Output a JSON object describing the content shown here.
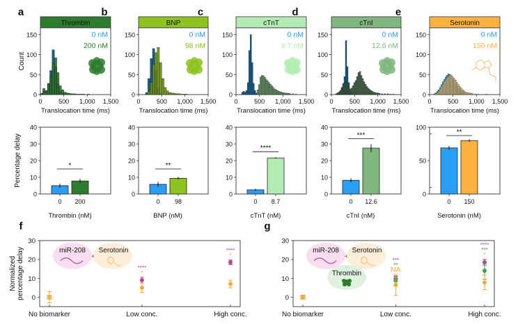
{
  "chart_data": [
    {
      "panel": "a",
      "type": "bar",
      "subtype": "histogram",
      "title": "Thrombin",
      "header_color": "#2e7d2e",
      "xlabel": "Translocation time (ms)",
      "ylabel": "Count",
      "xlim": [
        0,
        1500
      ],
      "ylim": [
        0,
        160
      ],
      "xticks": [
        "0",
        "500",
        "1,000",
        "1,500"
      ],
      "yticks": [
        "0",
        "50",
        "100",
        "150"
      ],
      "legend": [
        {
          "label": "0 nM",
          "color": "#2a9df4"
        },
        {
          "label": "200 nM",
          "color": "#2e7d2e"
        }
      ],
      "legend_placement": "top-right",
      "icon": "protein-structure",
      "bin_width": 50,
      "series": [
        {
          "name": "0 nM",
          "color": "#1a5f8c",
          "x": [
            0,
            50,
            100,
            150,
            200,
            250,
            300,
            350,
            400,
            450,
            500,
            550,
            600
          ],
          "values": [
            2,
            8,
            10,
            28,
            60,
            112,
            70,
            28,
            8,
            3,
            2,
            1,
            0
          ]
        },
        {
          "name": "200 nM",
          "color": "#2e6b2a",
          "x": [
            0,
            50,
            100,
            150,
            200,
            250,
            300,
            350,
            400,
            450,
            500,
            550,
            600,
            650,
            700,
            750,
            800,
            850,
            900,
            950,
            1000
          ],
          "values": [
            3,
            15,
            10,
            25,
            45,
            78,
            92,
            55,
            22,
            12,
            6,
            4,
            3,
            2,
            2,
            1,
            1,
            1,
            1,
            0,
            1
          ]
        }
      ]
    },
    {
      "panel": "b",
      "type": "bar",
      "subtype": "histogram",
      "title": "BNP",
      "header_color": "#8dc21f",
      "xlabel": "Translocation time (ms)",
      "ylabel": "",
      "xlim": [
        0,
        1500
      ],
      "ylim": [
        0,
        160
      ],
      "xticks": [
        "0",
        "500",
        "1,000",
        "1,500"
      ],
      "yticks": [
        "0",
        "50",
        "100",
        "150"
      ],
      "legend": [
        {
          "label": "0 nM",
          "color": "#2a9df4"
        },
        {
          "label": "98 nM",
          "color": "#8dc21f"
        }
      ],
      "legend_placement": "top-right",
      "icon": "protein-structure",
      "bin_width": 50,
      "series": [
        {
          "name": "0 nM",
          "color": "#1a5f8c",
          "x": [
            150,
            200,
            250,
            300,
            350,
            400,
            450
          ],
          "values": [
            5,
            40,
            90,
            115,
            60,
            15,
            3
          ]
        },
        {
          "name": "98 nM",
          "color": "#6b8e14",
          "x": [
            200,
            250,
            300,
            350,
            400,
            450,
            500,
            550,
            600,
            650,
            700,
            750,
            800,
            850,
            900,
            950,
            1000
          ],
          "values": [
            8,
            30,
            75,
            105,
            118,
            80,
            40,
            18,
            9,
            5,
            4,
            3,
            2,
            2,
            1,
            1,
            1
          ]
        }
      ]
    },
    {
      "panel": "c",
      "type": "bar",
      "subtype": "histogram",
      "title": "cTnT",
      "header_color": "#b2ecb2",
      "xlabel": "Translocation time (ms)",
      "ylabel": "",
      "xlim": [
        0,
        1500
      ],
      "ylim": [
        0,
        160
      ],
      "xticks": [
        "0",
        "500",
        "1,000",
        "1,500"
      ],
      "yticks": [
        "0",
        "50",
        "100",
        "150"
      ],
      "legend": [
        {
          "label": "0 nM",
          "color": "#2a9df4"
        },
        {
          "label": "8.7 nM",
          "color": "#b2ecb2"
        }
      ],
      "legend_placement": "top-right",
      "icon": "protein-structure",
      "bin_width": 30,
      "series": [
        {
          "name": "0 nM",
          "color": "#1a5f8c",
          "x": [
            120,
            150,
            180,
            210,
            240,
            270,
            300,
            330,
            360,
            390,
            420
          ],
          "values": [
            6,
            8,
            6,
            10,
            30,
            110,
            150,
            80,
            28,
            10,
            4
          ]
        },
        {
          "name": "8.7 nM",
          "color": "#5a8a5a",
          "x": [
            450,
            480,
            510,
            540,
            570,
            600,
            630,
            660,
            690,
            720,
            750,
            780,
            810,
            840,
            870,
            900,
            930,
            960,
            990,
            1020,
            1050,
            1080,
            1110,
            1140,
            1200,
            1260
          ],
          "values": [
            12,
            25,
            44,
            48,
            47,
            43,
            38,
            34,
            30,
            26,
            22,
            18,
            14,
            12,
            10,
            8,
            7,
            6,
            5,
            4,
            4,
            3,
            3,
            2,
            2,
            1
          ]
        }
      ]
    },
    {
      "panel": "d",
      "type": "bar",
      "subtype": "histogram",
      "title": "cTnI",
      "header_color": "#7fb77e",
      "xlabel": "Translocation time (ms)",
      "ylabel": "",
      "xlim": [
        0,
        1500
      ],
      "ylim": [
        0,
        160
      ],
      "xticks": [
        "0",
        "500",
        "1,000",
        "1,500"
      ],
      "yticks": [
        "0",
        "50",
        "100",
        "150"
      ],
      "legend": [
        {
          "label": "0 nM",
          "color": "#2a9df4"
        },
        {
          "label": "12.6 nM",
          "color": "#7fb77e"
        }
      ],
      "legend_placement": "top-right",
      "icon": "protein-structure",
      "bin_width": 30,
      "series": [
        {
          "name": "0 nM",
          "color": "#1a5f8c",
          "x": [
            90,
            120,
            150,
            180,
            210,
            240,
            270,
            300,
            330,
            360,
            390,
            420
          ],
          "values": [
            2,
            4,
            6,
            10,
            18,
            28,
            45,
            135,
            70,
            30,
            10,
            4
          ]
        },
        {
          "name": "12.6 nM",
          "color": "#3f5f3f",
          "x": [
            120,
            150,
            180,
            210,
            240,
            270,
            300,
            330,
            360,
            390,
            420,
            450,
            480,
            510,
            540,
            570,
            600,
            630,
            660,
            690,
            720,
            750,
            780,
            810,
            840,
            870,
            900,
            930,
            960,
            990,
            1020,
            1080,
            1140,
            1200,
            1260,
            1320
          ],
          "values": [
            3,
            6,
            10,
            15,
            20,
            28,
            32,
            28,
            18,
            14,
            16,
            22,
            30,
            35,
            45,
            55,
            58,
            48,
            40,
            32,
            26,
            20,
            16,
            13,
            10,
            8,
            6,
            5,
            4,
            4,
            3,
            2,
            2,
            2,
            1,
            1
          ]
        }
      ]
    },
    {
      "panel": "e",
      "type": "bar",
      "subtype": "histogram",
      "title": "Serotonin",
      "header_color": "#ffb23f",
      "xlabel": "Translocation time (ms)",
      "ylabel": "",
      "xlim": [
        0,
        1500
      ],
      "ylim": [
        0,
        160
      ],
      "xticks": [
        "0",
        "500",
        "1,000",
        "1,500"
      ],
      "yticks": [
        "0",
        "50",
        "100",
        "150"
      ],
      "legend": [
        {
          "label": "0 nM",
          "color": "#2a9df4"
        },
        {
          "label": "150 nM",
          "color": "#ffb23f"
        }
      ],
      "legend_placement": "top-right",
      "icon": "serotonin-molecule",
      "bin_width": 30,
      "series": [
        {
          "name": "0 nM",
          "color": "#2a9df4",
          "x": [
            90,
            120,
            150,
            180,
            210,
            240,
            270,
            300,
            330,
            360,
            390,
            420,
            450,
            480,
            510,
            540,
            570,
            600,
            630,
            660,
            690,
            720
          ],
          "values": [
            2,
            4,
            8,
            12,
            18,
            25,
            32,
            38,
            44,
            48,
            52,
            50,
            46,
            40,
            34,
            28,
            22,
            16,
            12,
            8,
            5,
            3
          ]
        },
        {
          "name": "150 nM",
          "color": "#d4b77a",
          "x": [
            120,
            150,
            180,
            210,
            240,
            270,
            300,
            330,
            360,
            390,
            420,
            450,
            480,
            510,
            540,
            570,
            600,
            630,
            660,
            690,
            720,
            750,
            780,
            810,
            840,
            870,
            900,
            960,
            1020,
            1200
          ],
          "values": [
            3,
            5,
            9,
            14,
            20,
            26,
            33,
            38,
            42,
            46,
            50,
            48,
            44,
            40,
            36,
            30,
            25,
            20,
            16,
            12,
            9,
            6,
            5,
            4,
            4,
            3,
            2,
            1,
            1,
            1
          ]
        }
      ]
    },
    {
      "panel": "a-bottom",
      "type": "bar",
      "ylabel": "Percentage delay",
      "xlabel": "Thrombin (nM)",
      "categories": [
        "0",
        "200"
      ],
      "values": [
        5.0,
        7.8
      ],
      "errors": [
        1.2,
        1.3
      ],
      "colors": [
        "#2a9df4",
        "#2e7d2e"
      ],
      "ylim": [
        0,
        40
      ],
      "yticks": [
        "0",
        "10",
        "20",
        "30",
        "40"
      ],
      "significance": "*"
    },
    {
      "panel": "b-bottom",
      "type": "bar",
      "ylabel": "",
      "xlabel": "BNP (nM)",
      "categories": [
        "0",
        "98"
      ],
      "values": [
        5.8,
        9.4
      ],
      "errors": [
        1.5,
        0.8
      ],
      "colors": [
        "#2a9df4",
        "#8dc21f"
      ],
      "ylim": [
        0,
        40
      ],
      "yticks": [
        "0",
        "10",
        "20",
        "30",
        "40"
      ],
      "significance": "**"
    },
    {
      "panel": "c-bottom",
      "type": "bar",
      "ylabel": "",
      "xlabel": "cTnT (nM)",
      "categories": [
        "0",
        "8.7"
      ],
      "values": [
        2.5,
        21.6
      ],
      "errors": [
        0.7,
        0.4
      ],
      "colors": [
        "#2a9df4",
        "#b2ecb2"
      ],
      "ylim": [
        0,
        40
      ],
      "yticks": [
        "0",
        "10",
        "20",
        "30",
        "40"
      ],
      "significance": "****"
    },
    {
      "panel": "d-bottom",
      "type": "bar",
      "ylabel": "",
      "xlabel": "cTnI (nM)",
      "categories": [
        "0",
        "12.6"
      ],
      "values": [
        8.2,
        27.5
      ],
      "errors": [
        1.2,
        2.3
      ],
      "colors": [
        "#2a9df4",
        "#7fb77e"
      ],
      "ylim": [
        0,
        40
      ],
      "yticks": [
        "0",
        "10",
        "20",
        "30",
        "40"
      ],
      "significance": "***"
    },
    {
      "panel": "e-bottom",
      "type": "bar",
      "ylabel": "",
      "xlabel": "Serotonin (nM)",
      "categories": [
        "0",
        "150"
      ],
      "values": [
        69,
        80
      ],
      "errors": [
        3,
        2
      ],
      "colors": [
        "#2a9df4",
        "#ffb23f"
      ],
      "ylim": [
        0,
        100
      ],
      "yticks": [
        "0",
        "50",
        "100"
      ],
      "significance": "**"
    },
    {
      "panel": "f",
      "type": "scatter",
      "ylabel": "Normalized percentage delay",
      "categories": [
        "No biomarker",
        "Low conc.",
        "High conc."
      ],
      "ylim": [
        -5,
        30
      ],
      "yticks": [
        "0",
        "10",
        "20",
        "30"
      ],
      "annotation_labels": [
        "miR-208",
        "+",
        "Serotonin"
      ],
      "series": [
        {
          "name": "miR-208 + Serotonin (purple)",
          "color": "#b5449b",
          "values": [
            0,
            9,
            18.5
          ],
          "errors": [
            0,
            1.5,
            1.2
          ],
          "significance": [
            "",
            "****",
            "****"
          ]
        },
        {
          "name": "Serotonin (orange)",
          "color": "#f7a935",
          "values": [
            0,
            5,
            7
          ],
          "errors": [
            3,
            2.5,
            2
          ],
          "significance": [
            "",
            "*",
            "*"
          ]
        }
      ]
    },
    {
      "panel": "g",
      "type": "scatter",
      "ylabel": "",
      "categories": [
        "No biomarker",
        "Low conc.",
        "High conc."
      ],
      "ylim": [
        -5,
        30
      ],
      "yticks": [
        "0",
        "10",
        "20",
        "30"
      ],
      "annotation_labels": [
        "miR-208",
        "+",
        "Serotonin",
        "+",
        "Thrombin"
      ],
      "series": [
        {
          "name": "miR-208 (purple)",
          "color": "#b5449b",
          "values": [
            0,
            9.8,
            18.5
          ],
          "errors": [
            0,
            1.5,
            1.5
          ],
          "significance": [
            "",
            "***",
            "****"
          ]
        },
        {
          "name": "Thrombin (green)",
          "color": "#3aa04a",
          "values": [
            0,
            8.8,
            14
          ],
          "errors": [
            0,
            2.2,
            4.5
          ],
          "significance": [
            "",
            "**",
            "***"
          ]
        },
        {
          "name": "Serotonin (orange)",
          "color": "#f7a935",
          "values": [
            0,
            6.5,
            7.8
          ],
          "errors": [
            1,
            5.5,
            3.8
          ],
          "significance": [
            "",
            "NA",
            "*"
          ]
        }
      ]
    }
  ],
  "panel_labels": [
    "a",
    "b",
    "c",
    "d",
    "e",
    "f",
    "g"
  ]
}
